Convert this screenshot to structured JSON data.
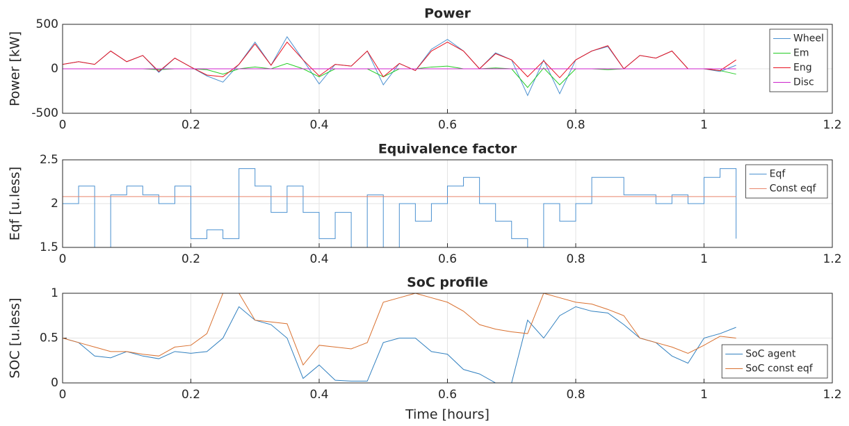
{
  "chart_data": [
    {
      "type": "line",
      "title": "Power",
      "ylabel": "Power [kW]",
      "x": [
        0,
        0.025,
        0.05,
        0.075,
        0.1,
        0.125,
        0.15,
        0.175,
        0.2,
        0.225,
        0.25,
        0.275,
        0.3,
        0.325,
        0.35,
        0.375,
        0.4,
        0.425,
        0.45,
        0.475,
        0.5,
        0.525,
        0.55,
        0.575,
        0.6,
        0.625,
        0.65,
        0.675,
        0.7,
        0.725,
        0.75,
        0.775,
        0.8,
        0.825,
        0.85,
        0.875,
        0.9,
        0.925,
        0.95,
        0.975,
        1.0,
        1.025,
        1.05
      ],
      "series": [
        {
          "name": "Wheel",
          "color": "#4a90d0",
          "values": [
            50,
            80,
            50,
            200,
            80,
            150,
            -40,
            120,
            20,
            -80,
            -150,
            50,
            300,
            40,
            360,
            100,
            -170,
            50,
            30,
            200,
            -180,
            60,
            -20,
            220,
            330,
            200,
            0,
            180,
            100,
            -300,
            100,
            -280,
            100,
            200,
            250,
            0,
            150,
            120,
            200,
            0,
            0,
            -30,
            40
          ]
        },
        {
          "name": "Em",
          "color": "#22cc22",
          "values": [
            0,
            0,
            0,
            0,
            0,
            0,
            -10,
            0,
            0,
            -10,
            -60,
            0,
            20,
            0,
            60,
            0,
            -90,
            0,
            0,
            0,
            -90,
            0,
            0,
            20,
            30,
            0,
            0,
            10,
            0,
            -210,
            10,
            -180,
            0,
            0,
            -10,
            0,
            0,
            0,
            0,
            0,
            0,
            -20,
            -60
          ]
        },
        {
          "name": "Eng",
          "color": "#e8101e",
          "values": [
            50,
            80,
            50,
            200,
            80,
            150,
            -30,
            120,
            20,
            -70,
            -90,
            50,
            280,
            40,
            300,
            100,
            -80,
            50,
            30,
            200,
            -90,
            60,
            -20,
            200,
            300,
            200,
            0,
            170,
            100,
            -90,
            90,
            -100,
            100,
            200,
            260,
            0,
            150,
            120,
            200,
            0,
            0,
            -20,
            100
          ]
        },
        {
          "name": "Disc",
          "color": "#cc22cc",
          "values": [
            0,
            0,
            0,
            0,
            0,
            0,
            0,
            0,
            0,
            0,
            0,
            0,
            0,
            0,
            0,
            0,
            0,
            0,
            0,
            0,
            0,
            0,
            0,
            0,
            0,
            0,
            0,
            0,
            0,
            0,
            0,
            0,
            0,
            0,
            0,
            0,
            0,
            0,
            0,
            0,
            0,
            0,
            0
          ]
        }
      ],
      "xlim": [
        0,
        1.2
      ],
      "xticks": [
        0,
        0.2,
        0.4,
        0.6,
        0.8,
        1,
        1.2
      ],
      "ylim": [
        -500,
        500
      ],
      "yticks": [
        -500,
        0,
        500
      ],
      "grid": true,
      "legend": "upper right"
    },
    {
      "type": "line",
      "title": "Equivalence factor",
      "ylabel": "Eqf [u.less]",
      "x": [
        0,
        0.025,
        0.05,
        0.075,
        0.1,
        0.125,
        0.15,
        0.175,
        0.2,
        0.225,
        0.25,
        0.275,
        0.3,
        0.325,
        0.35,
        0.375,
        0.4,
        0.425,
        0.45,
        0.475,
        0.5,
        0.525,
        0.55,
        0.575,
        0.6,
        0.625,
        0.65,
        0.675,
        0.7,
        0.725,
        0.75,
        0.775,
        0.8,
        0.825,
        0.85,
        0.875,
        0.9,
        0.925,
        0.95,
        0.975,
        1.0,
        1.025,
        1.05
      ],
      "series": [
        {
          "name": "Eqf",
          "color": "#4a90d0",
          "step": true,
          "values": [
            2.0,
            2.2,
            1.5,
            2.1,
            2.2,
            2.1,
            2.0,
            2.2,
            1.6,
            1.7,
            1.6,
            2.4,
            2.2,
            1.9,
            2.2,
            1.9,
            1.6,
            1.9,
            1.5,
            2.1,
            1.5,
            2.0,
            1.8,
            2.0,
            2.2,
            2.3,
            2.0,
            1.8,
            1.6,
            1.5,
            2.0,
            1.8,
            2.0,
            2.3,
            2.3,
            2.1,
            2.1,
            2.0,
            2.1,
            2.0,
            2.3,
            2.4,
            1.6
          ]
        },
        {
          "name": "Const eqf",
          "color": "#e8856a",
          "x": [
            0,
            1.05
          ],
          "values": [
            2.08,
            2.08
          ]
        }
      ],
      "xlim": [
        0,
        1.2
      ],
      "xticks": [
        0,
        0.2,
        0.4,
        0.6,
        0.8,
        1,
        1.2
      ],
      "ylim": [
        1.5,
        2.5
      ],
      "yticks": [
        1.5,
        2,
        2.5
      ],
      "grid": true,
      "legend": "upper right"
    },
    {
      "type": "line",
      "title": "SoC profile",
      "ylabel": "SOC [u.less]",
      "xlabel": "Time [hours]",
      "x": [
        0,
        0.025,
        0.05,
        0.075,
        0.1,
        0.125,
        0.15,
        0.175,
        0.2,
        0.225,
        0.25,
        0.275,
        0.3,
        0.325,
        0.35,
        0.375,
        0.4,
        0.425,
        0.45,
        0.475,
        0.5,
        0.525,
        0.55,
        0.575,
        0.6,
        0.625,
        0.65,
        0.675,
        0.7,
        0.725,
        0.75,
        0.775,
        0.8,
        0.825,
        0.85,
        0.875,
        0.9,
        0.925,
        0.95,
        0.975,
        1.0,
        1.025,
        1.05
      ],
      "series": [
        {
          "name": "SoC agent",
          "color": "#2f7fbf",
          "values": [
            0.5,
            0.45,
            0.3,
            0.28,
            0.35,
            0.3,
            0.27,
            0.35,
            0.33,
            0.35,
            0.5,
            0.85,
            0.7,
            0.65,
            0.5,
            0.05,
            0.2,
            0.03,
            0.02,
            0.02,
            0.45,
            0.5,
            0.5,
            0.35,
            0.32,
            0.15,
            0.1,
            0,
            0,
            0.7,
            0.5,
            0.75,
            0.85,
            0.8,
            0.78,
            0.65,
            0.5,
            0.45,
            0.3,
            0.22,
            0.5,
            0.55,
            0.62
          ]
        },
        {
          "name": "SoC const eqf",
          "color": "#d9702f",
          "values": [
            0.5,
            0.45,
            0.4,
            0.35,
            0.35,
            0.32,
            0.3,
            0.4,
            0.42,
            0.55,
            1.0,
            1.0,
            0.7,
            0.68,
            0.66,
            0.2,
            0.42,
            0.4,
            0.38,
            0.45,
            0.9,
            0.95,
            1.0,
            0.95,
            0.9,
            0.8,
            0.65,
            0.6,
            0.57,
            0.55,
            1.0,
            0.95,
            0.9,
            0.88,
            0.82,
            0.75,
            0.5,
            0.45,
            0.4,
            0.33,
            0.42,
            0.52,
            0.5
          ]
        }
      ],
      "xlim": [
        0,
        1.2
      ],
      "xticks": [
        0,
        0.2,
        0.4,
        0.6,
        0.8,
        1,
        1.2
      ],
      "ylim": [
        0,
        1
      ],
      "yticks": [
        0,
        0.5,
        1
      ],
      "grid": true,
      "legend": "lower right"
    }
  ]
}
